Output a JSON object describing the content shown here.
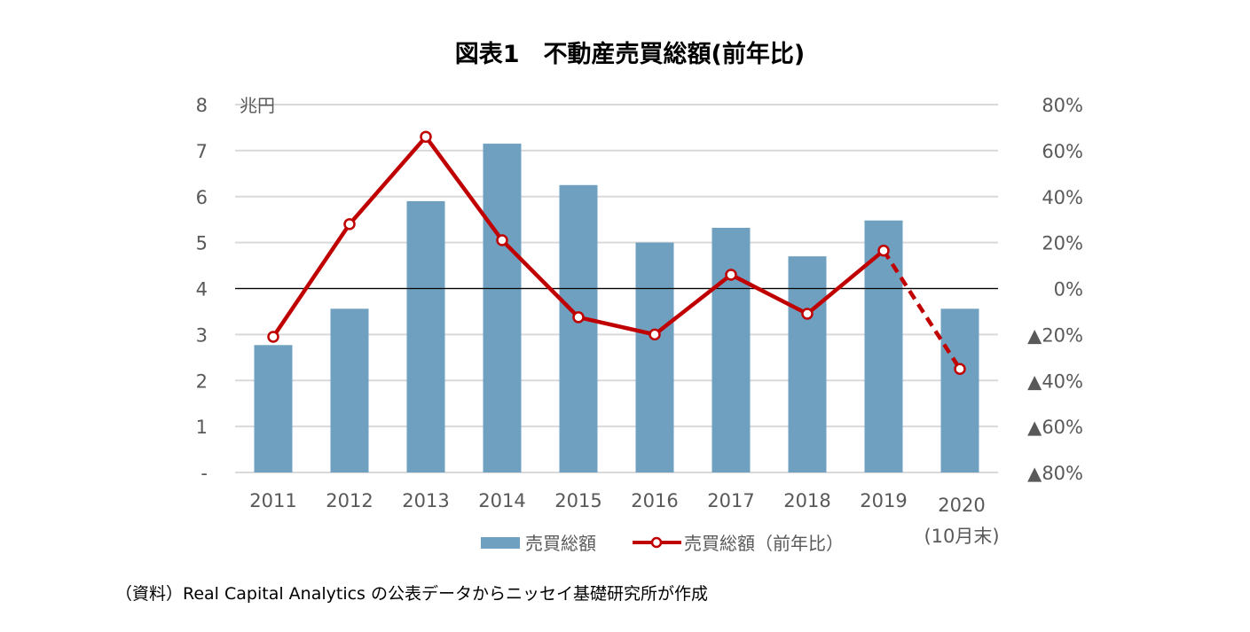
{
  "chart_data": {
    "type": "bar",
    "title": "図表1　不動産売買総額(前年比)",
    "unit_label": "兆円",
    "categories": [
      "2011",
      "2012",
      "2013",
      "2014",
      "2015",
      "2016",
      "2017",
      "2018",
      "2019",
      "2020"
    ],
    "category_note": "(10月末)",
    "y_left": {
      "range": [
        0,
        8
      ],
      "ticks": [
        "-",
        "1",
        "2",
        "3",
        "4",
        "5",
        "6",
        "7",
        "8"
      ]
    },
    "y_right": {
      "range": [
        -80,
        80
      ],
      "ticks": [
        "▲80%",
        "▲60%",
        "▲40%",
        "▲20%",
        "0%",
        "20%",
        "40%",
        "60%",
        "80%"
      ]
    },
    "series": [
      {
        "name": "売買総額",
        "type": "bar",
        "axis": "left",
        "color": "#6fa0c0",
        "values": [
          2.77,
          3.56,
          5.9,
          7.15,
          6.25,
          5.0,
          5.32,
          4.7,
          5.48,
          3.56
        ]
      },
      {
        "name": "売買総額（前年比）",
        "type": "line",
        "axis": "right",
        "color": "#c00000",
        "values": [
          -21,
          28,
          66,
          21,
          -12.5,
          -20,
          6,
          -11,
          16.5,
          -35
        ],
        "dashed_last_segment": true
      }
    ],
    "reference_line_right": 0,
    "grid": true,
    "legend_position": "bottom",
    "source_note": "（資料）Real Capital Analytics の公表データからニッセイ基礎研究所が作成"
  }
}
